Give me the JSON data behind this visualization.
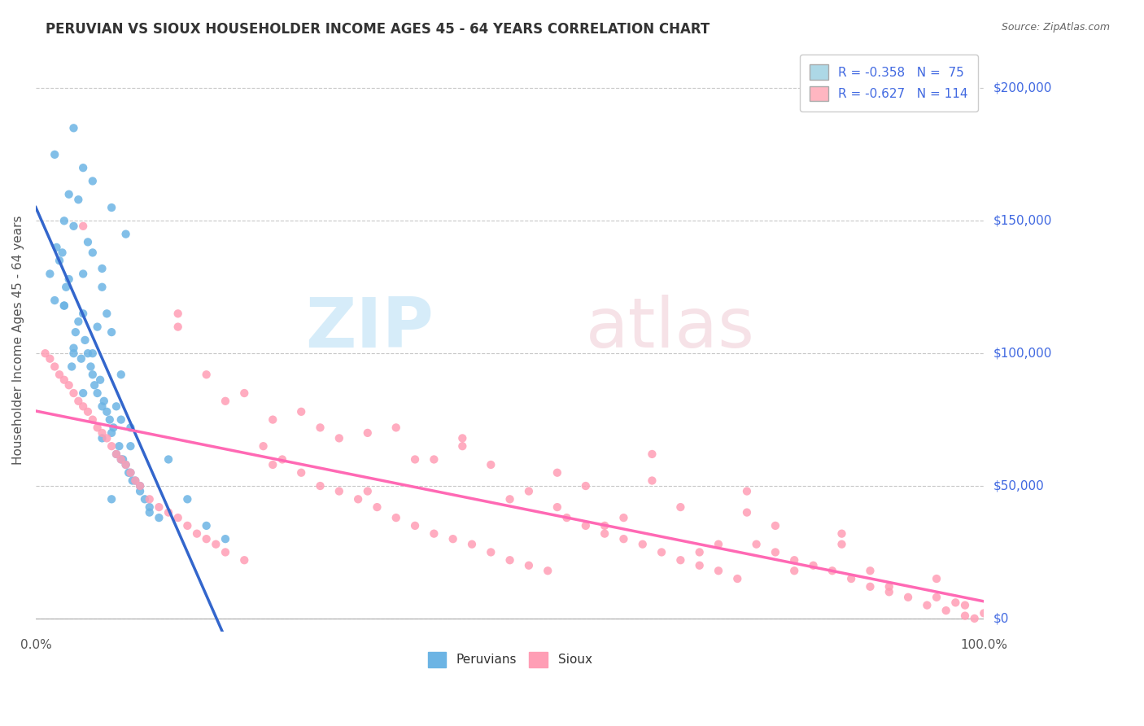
{
  "title": "PERUVIAN VS SIOUX HOUSEHOLDER INCOME AGES 45 - 64 YEARS CORRELATION CHART",
  "source": "Source: ZipAtlas.com",
  "ylabel": "Householder Income Ages 45 - 64 years",
  "legend_lines": [
    {
      "label": "R = -0.358   N =  75",
      "color": "#add8e6"
    },
    {
      "label": "R = -0.627   N = 114",
      "color": "#ffb6c1"
    }
  ],
  "ytick_labels": [
    "$0",
    "$50,000",
    "$100,000",
    "$150,000",
    "$200,000"
  ],
  "ytick_values": [
    0,
    50000,
    100000,
    150000,
    200000
  ],
  "xtick_labels": [
    "0.0%",
    "100.0%"
  ],
  "xlim": [
    0,
    100
  ],
  "ylim": [
    -5000,
    215000
  ],
  "peruvian_color": "#6cb4e4",
  "sioux_color": "#ff9eb5",
  "peruvian_line_color": "#3366cc",
  "sioux_line_color": "#ff69b4",
  "background_color": "#ffffff",
  "grid_color": "#c8c8c8",
  "ytick_color": "#4169e1",
  "title_color": "#333333",
  "peruvian_x": [
    1.5,
    2.0,
    2.5,
    3.0,
    3.5,
    4.0,
    4.5,
    5.0,
    5.5,
    6.0,
    6.5,
    7.0,
    7.5,
    8.0,
    8.5,
    9.0,
    9.5,
    10.0,
    10.5,
    11.0,
    2.2,
    2.8,
    3.2,
    3.8,
    4.2,
    4.8,
    5.2,
    5.8,
    6.2,
    6.8,
    7.2,
    7.8,
    8.2,
    8.8,
    9.2,
    9.8,
    10.2,
    11.5,
    12.0,
    13.0,
    14.0,
    16.0,
    18.0,
    20.0,
    3.0,
    4.0,
    5.0,
    6.0,
    7.0,
    8.0,
    9.0,
    10.0,
    3.5,
    4.5,
    5.5,
    6.5,
    7.5,
    8.5,
    9.5,
    2.0,
    3.0,
    4.0,
    5.0,
    6.0,
    7.0,
    8.0,
    9.0,
    10.0,
    11.0,
    12.0,
    4.0,
    5.0,
    6.0,
    7.0,
    8.0
  ],
  "peruvian_y": [
    130000,
    120000,
    135000,
    118000,
    128000,
    100000,
    112000,
    115000,
    100000,
    92000,
    85000,
    80000,
    78000,
    70000,
    62000,
    60000,
    58000,
    55000,
    52000,
    48000,
    140000,
    138000,
    125000,
    95000,
    108000,
    98000,
    105000,
    95000,
    88000,
    90000,
    82000,
    75000,
    72000,
    65000,
    60000,
    55000,
    52000,
    45000,
    42000,
    38000,
    60000,
    45000,
    35000,
    30000,
    150000,
    148000,
    170000,
    165000,
    132000,
    155000,
    75000,
    65000,
    160000,
    158000,
    142000,
    110000,
    115000,
    80000,
    145000,
    175000,
    118000,
    102000,
    85000,
    138000,
    125000,
    108000,
    92000,
    72000,
    50000,
    40000,
    185000,
    130000,
    100000,
    68000,
    45000
  ],
  "sioux_x": [
    1.0,
    2.0,
    3.0,
    4.0,
    5.0,
    6.0,
    7.0,
    8.0,
    9.0,
    10.0,
    11.0,
    12.0,
    13.0,
    14.0,
    15.0,
    16.0,
    17.0,
    18.0,
    19.0,
    20.0,
    22.0,
    24.0,
    26.0,
    28.0,
    30.0,
    32.0,
    34.0,
    36.0,
    38.0,
    40.0,
    42.0,
    44.0,
    46.0,
    48.0,
    50.0,
    52.0,
    54.0,
    56.0,
    58.0,
    60.0,
    62.0,
    64.0,
    66.0,
    68.0,
    70.0,
    72.0,
    74.0,
    76.0,
    78.0,
    80.0,
    82.0,
    84.0,
    86.0,
    88.0,
    90.0,
    92.0,
    94.0,
    96.0,
    98.0,
    99.0,
    1.5,
    2.5,
    3.5,
    4.5,
    5.5,
    6.5,
    7.5,
    8.5,
    9.5,
    10.5,
    15.0,
    25.0,
    35.0,
    45.0,
    55.0,
    65.0,
    75.0,
    85.0,
    95.0,
    97.0,
    20.0,
    30.0,
    40.0,
    50.0,
    60.0,
    70.0,
    80.0,
    90.0,
    100.0,
    5.0,
    15.0,
    25.0,
    35.0,
    45.0,
    55.0,
    65.0,
    75.0,
    85.0,
    95.0,
    28.0,
    38.0,
    48.0,
    58.0,
    68.0,
    78.0,
    88.0,
    98.0,
    18.0,
    22.0,
    32.0,
    42.0,
    52.0,
    62.0,
    72.0
  ],
  "sioux_y": [
    100000,
    95000,
    90000,
    85000,
    80000,
    75000,
    70000,
    65000,
    60000,
    55000,
    50000,
    45000,
    42000,
    40000,
    38000,
    35000,
    32000,
    30000,
    28000,
    25000,
    22000,
    65000,
    60000,
    55000,
    50000,
    48000,
    45000,
    42000,
    38000,
    35000,
    32000,
    30000,
    28000,
    25000,
    22000,
    20000,
    18000,
    38000,
    35000,
    32000,
    30000,
    28000,
    25000,
    22000,
    20000,
    18000,
    15000,
    28000,
    25000,
    22000,
    20000,
    18000,
    15000,
    12000,
    10000,
    8000,
    5000,
    3000,
    1000,
    0,
    98000,
    92000,
    88000,
    82000,
    78000,
    72000,
    68000,
    62000,
    58000,
    52000,
    110000,
    58000,
    48000,
    68000,
    42000,
    62000,
    48000,
    28000,
    8000,
    6000,
    82000,
    72000,
    60000,
    45000,
    35000,
    25000,
    18000,
    12000,
    2000,
    148000,
    115000,
    75000,
    70000,
    65000,
    55000,
    52000,
    40000,
    32000,
    15000,
    78000,
    72000,
    58000,
    50000,
    42000,
    35000,
    18000,
    5000,
    92000,
    85000,
    68000,
    60000,
    48000,
    38000,
    28000
  ]
}
